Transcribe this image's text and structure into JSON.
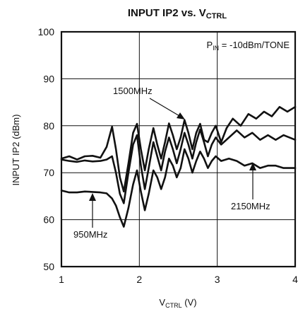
{
  "chart_data": {
    "type": "line",
    "title_main": "INPUT IP2 vs. V",
    "title_sub": "CTRL",
    "xlabel_main": "V",
    "xlabel_sub": "CTRL",
    "xlabel_unit": " (V)",
    "ylabel": "INPUT IP2 (dBm)",
    "xlim": [
      1,
      4
    ],
    "ylim": [
      50,
      100
    ],
    "xticks": [
      1,
      2,
      3,
      4
    ],
    "yticks": [
      50,
      60,
      70,
      80,
      90,
      100
    ],
    "grid": true,
    "condition_main": "P",
    "condition_sub": "IN",
    "condition_rest": " = -10dBm/TONE",
    "series": [
      {
        "name": "1500MHz",
        "x": [
          1.0,
          1.1,
          1.2,
          1.3,
          1.4,
          1.5,
          1.58,
          1.65,
          1.7,
          1.75,
          1.8,
          1.86,
          1.92,
          1.97,
          2.02,
          2.07,
          2.12,
          2.18,
          2.23,
          2.28,
          2.33,
          2.38,
          2.43,
          2.48,
          2.53,
          2.58,
          2.63,
          2.68,
          2.73,
          2.78,
          2.83,
          2.88,
          2.93,
          2.98,
          3.05,
          3.12,
          3.2,
          3.3,
          3.4,
          3.5,
          3.6,
          3.7,
          3.8,
          3.9,
          4.0
        ],
        "y": [
          73,
          73.5,
          72.8,
          73.5,
          73.6,
          73.2,
          75.5,
          79.8,
          75,
          69,
          66,
          72,
          78.5,
          80.4,
          75,
          70.5,
          75,
          79.5,
          76,
          73,
          76.5,
          80.5,
          78,
          75,
          77.5,
          81.2,
          78.5,
          75,
          78.5,
          80.4,
          77,
          76.5,
          78.5,
          80,
          76.5,
          79.5,
          81.5,
          80,
          82.5,
          81.5,
          83,
          82,
          84,
          83,
          84
        ]
      },
      {
        "name": "2150MHz",
        "x": [
          1.0,
          1.1,
          1.2,
          1.3,
          1.4,
          1.5,
          1.58,
          1.65,
          1.7,
          1.75,
          1.8,
          1.86,
          1.92,
          1.97,
          2.02,
          2.07,
          2.12,
          2.18,
          2.23,
          2.28,
          2.33,
          2.38,
          2.43,
          2.48,
          2.53,
          2.58,
          2.63,
          2.68,
          2.73,
          2.78,
          2.83,
          2.88,
          2.93,
          2.98,
          3.05,
          3.15,
          3.25,
          3.35,
          3.45,
          3.55,
          3.65,
          3.75,
          3.85,
          4.0
        ],
        "y": [
          72.8,
          72.5,
          72.3,
          72.6,
          72.4,
          72.5,
          72.8,
          73.5,
          70,
          65.5,
          63.5,
          70,
          76,
          78,
          71.5,
          66.5,
          71,
          76.5,
          73.5,
          70.5,
          74.5,
          77.5,
          75,
          72,
          75,
          78.5,
          76,
          73,
          76.5,
          79.2,
          76.5,
          73.5,
          76,
          77.5,
          76,
          77.5,
          79,
          77.5,
          78.5,
          77,
          78,
          77,
          78,
          77
        ]
      },
      {
        "name": "950MHz",
        "x": [
          1.0,
          1.1,
          1.2,
          1.3,
          1.4,
          1.5,
          1.58,
          1.65,
          1.7,
          1.75,
          1.8,
          1.86,
          1.92,
          1.97,
          2.02,
          2.07,
          2.12,
          2.18,
          2.23,
          2.28,
          2.33,
          2.38,
          2.43,
          2.48,
          2.53,
          2.58,
          2.63,
          2.68,
          2.73,
          2.78,
          2.83,
          2.88,
          2.93,
          2.98,
          3.05,
          3.15,
          3.25,
          3.35,
          3.45,
          3.55,
          3.65,
          3.75,
          3.85,
          4.0
        ],
        "y": [
          66.2,
          65.8,
          65.8,
          66,
          65.9,
          65.8,
          65.6,
          64.5,
          63,
          60.5,
          58.5,
          62.5,
          67.5,
          70.5,
          66,
          62,
          65.5,
          70.5,
          69,
          66.5,
          69,
          73,
          71.5,
          69,
          71,
          75,
          73,
          70,
          72.5,
          74.5,
          73,
          71,
          72.5,
          73.5,
          72.5,
          73,
          72.5,
          71.5,
          72,
          71,
          71.5,
          71.5,
          71,
          71
        ]
      }
    ]
  }
}
